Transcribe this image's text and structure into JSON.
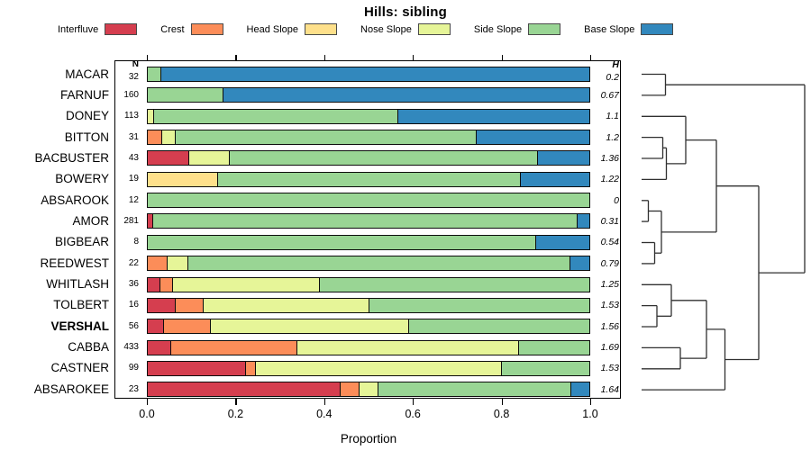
{
  "title": "Hills: sibling",
  "axis": {
    "xlabel": "Proportion",
    "tick_labels": [
      "0.0",
      "0.2",
      "0.4",
      "0.6",
      "0.8",
      "1.0"
    ],
    "tick_values": [
      0,
      0.2,
      0.4,
      0.6,
      0.8,
      1.0
    ],
    "n_header": "N",
    "h_header": "H"
  },
  "chart_data": {
    "type": "bar",
    "orientation": "horizontal",
    "stacked": true,
    "title": "Hills: sibling",
    "xlabel": "Proportion",
    "xlim": [
      0,
      1
    ],
    "categories": [
      "MACAR",
      "FARNUF",
      "DONEY",
      "BITTON",
      "BACBUSTER",
      "BOWERY",
      "ABSAROOK",
      "AMOR",
      "BIGBEAR",
      "REEDWEST",
      "WHITLASH",
      "TOLBERT",
      "VERSHAL",
      "CABBA",
      "CASTNER",
      "ABSAROKEE"
    ],
    "bold_category": "VERSHAL",
    "n_values": [
      32,
      160,
      113,
      31,
      43,
      19,
      12,
      281,
      8,
      22,
      36,
      16,
      56,
      433,
      99,
      23
    ],
    "h_values": [
      "0.2",
      "0.67",
      "1.1",
      "1.2",
      "1.36",
      "1.22",
      "0",
      "0.31",
      "0.54",
      "0.79",
      "1.25",
      "1.53",
      "1.56",
      "1.69",
      "1.53",
      "1.64"
    ],
    "series": [
      {
        "name": "Interfluve",
        "color": "#D53E4F",
        "values": [
          0,
          0,
          0,
          0,
          0.093,
          0,
          0,
          0.013,
          0,
          0,
          0.028,
          0.0625,
          0.036,
          0.053,
          0.222,
          0.435
        ]
      },
      {
        "name": "Crest",
        "color": "#FC8D59",
        "values": [
          0,
          0,
          0,
          0.032,
          0,
          0,
          0,
          0,
          0,
          0.045,
          0.028,
          0.0625,
          0.107,
          0.285,
          0.022,
          0.043
        ]
      },
      {
        "name": "Head Slope",
        "color": "#FEE08B",
        "values": [
          0,
          0,
          0,
          0,
          0,
          0.158,
          0,
          0,
          0,
          0,
          0,
          0,
          0,
          0,
          0,
          0
        ]
      },
      {
        "name": "Nose Slope",
        "color": "#E6F598",
        "values": [
          0,
          0,
          0.015,
          0.032,
          0.092,
          0,
          0,
          0,
          0,
          0.046,
          0.333,
          0.375,
          0.446,
          0.5,
          0.555,
          0.043
        ]
      },
      {
        "name": "Side Slope",
        "color": "#99D594",
        "values": [
          0.03,
          0.17,
          0.55,
          0.677,
          0.695,
          0.684,
          1.0,
          0.957,
          0.875,
          0.863,
          0.611,
          0.5,
          0.411,
          0.162,
          0.201,
          0.435
        ]
      },
      {
        "name": "Base Slope",
        "color": "#3288BD",
        "values": [
          0.97,
          0.83,
          0.435,
          0.259,
          0.12,
          0.158,
          0,
          0.03,
          0.125,
          0.046,
          0,
          0,
          0,
          0,
          0,
          0.044
        ]
      }
    ],
    "legend_position": "top"
  },
  "dendrogram": {
    "line_color": "#303030",
    "segments": [
      [
        712,
        82.5,
        738.5,
        82.5
      ],
      [
        712,
        105.9,
        738.5,
        105.9
      ],
      [
        738.5,
        82.5,
        738.5,
        105.9
      ],
      [
        738.5,
        94.2,
        893,
        94.2
      ],
      [
        712,
        129.3,
        761,
        129.3
      ],
      [
        712,
        152.6,
        735.5,
        152.6
      ],
      [
        712,
        176,
        735.5,
        176
      ],
      [
        735.5,
        152.6,
        735.5,
        176
      ],
      [
        735.5,
        164.3,
        739.5,
        164.3
      ],
      [
        712,
        199.4,
        739.5,
        199.4
      ],
      [
        739.5,
        164.3,
        739.5,
        199.4
      ],
      [
        739.5,
        181.9,
        761,
        181.9
      ],
      [
        761,
        129.3,
        761,
        181.9
      ],
      [
        761,
        155.6,
        795,
        155.6
      ],
      [
        712,
        222.8,
        719.5,
        222.8
      ],
      [
        712,
        246.1,
        719.5,
        246.1
      ],
      [
        719.5,
        222.8,
        719.5,
        246.1
      ],
      [
        719.5,
        234.5,
        734,
        234.5
      ],
      [
        712,
        269.5,
        726.5,
        269.5
      ],
      [
        712,
        292.9,
        726.5,
        292.9
      ],
      [
        726.5,
        269.5,
        726.5,
        292.9
      ],
      [
        726.5,
        281.2,
        734,
        281.2
      ],
      [
        734,
        234.5,
        734,
        281.2
      ],
      [
        734,
        257.9,
        795,
        257.9
      ],
      [
        795,
        155.6,
        795,
        257.9
      ],
      [
        795,
        206.7,
        842,
        206.7
      ],
      [
        712,
        316.3,
        745,
        316.3
      ],
      [
        712,
        339.6,
        729,
        339.6
      ],
      [
        712,
        363,
        729,
        363
      ],
      [
        729,
        339.6,
        729,
        363
      ],
      [
        729,
        351.3,
        745,
        351.3
      ],
      [
        745,
        316.3,
        745,
        351.3
      ],
      [
        745,
        333.8,
        784,
        333.8
      ],
      [
        712,
        386.4,
        755,
        386.4
      ],
      [
        712,
        409.8,
        755,
        409.8
      ],
      [
        755,
        386.4,
        755,
        409.8
      ],
      [
        755,
        398.1,
        784,
        398.1
      ],
      [
        784,
        333.8,
        784,
        398.1
      ],
      [
        784,
        365.9,
        804.5,
        365.9
      ],
      [
        712,
        433.1,
        804.5,
        433.1
      ],
      [
        804.5,
        365.9,
        804.5,
        433.1
      ],
      [
        804.5,
        399.5,
        842,
        399.5
      ],
      [
        842,
        206.7,
        842,
        399.5
      ],
      [
        842,
        303.1,
        893,
        303.1
      ],
      [
        893,
        94.2,
        893,
        303.1
      ]
    ]
  }
}
